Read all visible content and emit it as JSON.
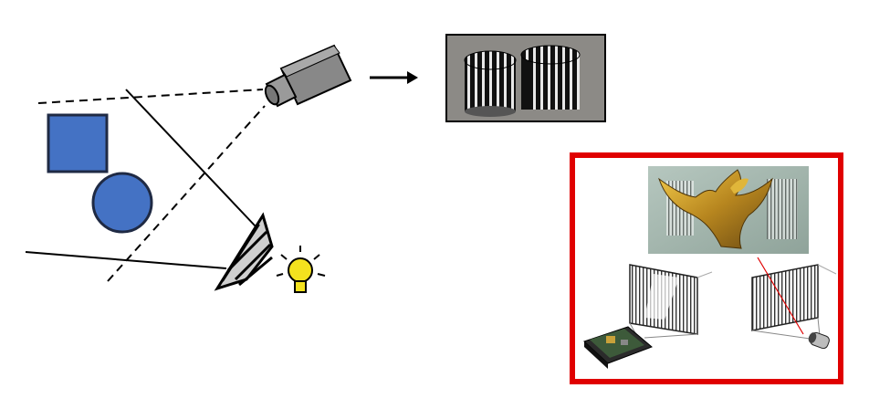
{
  "figure": {
    "left_panel": {
      "objects": [
        {
          "name": "square",
          "color": "#4472C4",
          "stroke": "#1F2A44"
        },
        {
          "name": "circle",
          "color": "#4472C4",
          "stroke": "#1F2A44"
        }
      ],
      "camera": {
        "icon": "video-camera-icon",
        "color": "#8A8A8A"
      },
      "projector": {
        "icon": "stripe-projector-icon",
        "color": "#BDBDBD"
      },
      "light": {
        "icon": "light-bulb-icon",
        "color": "#F4E21E"
      },
      "arrow": {
        "icon": "right-arrow-icon"
      }
    },
    "captured_image": {
      "icon": "striped-cylinders-image",
      "background": "#8C8A86"
    },
    "highlight_box": {
      "color": "#E00000"
    },
    "inset": {
      "photo": {
        "icon": "dragon-sculpture-photo"
      },
      "left_setup": {
        "icon": "circuit-board-projector-icon"
      },
      "right_setup": {
        "icon": "camera-lens-icon"
      }
    }
  }
}
